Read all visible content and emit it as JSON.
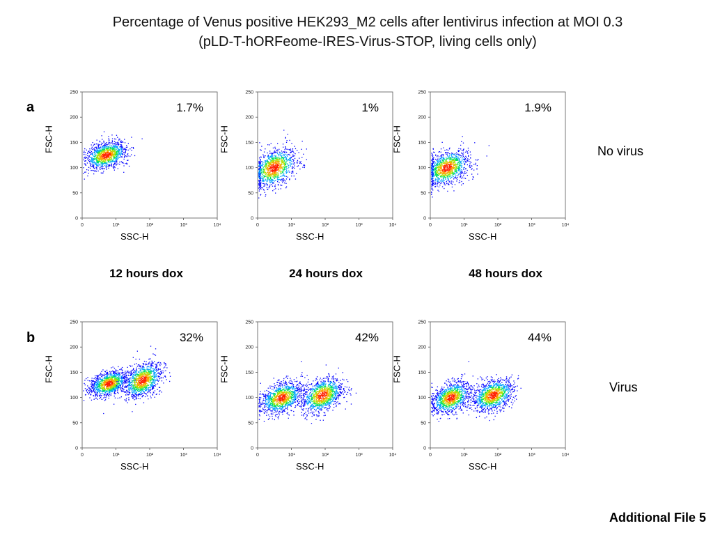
{
  "title": {
    "line1": "Percentage of Venus positive HEK293_M2 cells after lentivirus infection at MOI 0.3",
    "line2": "(pLD-T-hORFeome-IRES-Virus-STOP, living cells only)"
  },
  "rows": [
    {
      "label": "a",
      "side_label": "No virus"
    },
    {
      "label": "b",
      "side_label": "Virus"
    }
  ],
  "conditions": [
    "12 hours dox",
    "24 hours dox",
    "48 hours dox"
  ],
  "footer": "Additional File 5",
  "axis": {
    "xlabel": "SSC-H",
    "ylabel": "FSC-H",
    "x_ticks": [
      "0",
      "10¹",
      "10²",
      "10³",
      "10⁴"
    ],
    "y_ticks": [
      "0",
      "50",
      "100",
      "150",
      "200",
      "250"
    ],
    "ylim": [
      0,
      250
    ],
    "xscale": "log"
  },
  "density_colors": [
    "#0000ff",
    "#00a0ff",
    "#00e060",
    "#b0e000",
    "#ffa000",
    "#ff2000"
  ],
  "chart_data": [
    {
      "type": "scatter",
      "row": "a",
      "condition": "12 hours dox",
      "percent_positive": "1.7%",
      "clusters": [
        {
          "ssc_center": 5,
          "fsc_center": 125,
          "spread_log": 0.55,
          "spread_fsc": 14
        }
      ]
    },
    {
      "type": "scatter",
      "row": "a",
      "condition": "24 hours dox",
      "percent_positive": "1%",
      "clusters": [
        {
          "ssc_center": 3,
          "fsc_center": 100,
          "spread_log": 0.6,
          "spread_fsc": 20
        }
      ]
    },
    {
      "type": "scatter",
      "row": "a",
      "condition": "48 hours dox",
      "percent_positive": "1.9%",
      "clusters": [
        {
          "ssc_center": 3,
          "fsc_center": 100,
          "spread_log": 0.6,
          "spread_fsc": 18
        }
      ]
    },
    {
      "type": "scatter",
      "row": "b",
      "condition": "12 hours dox",
      "percent_positive": "32%",
      "clusters": [
        {
          "ssc_center": 6,
          "fsc_center": 128,
          "spread_log": 0.5,
          "spread_fsc": 13
        },
        {
          "ssc_center": 60,
          "fsc_center": 135,
          "spread_log": 0.5,
          "spread_fsc": 18
        }
      ]
    },
    {
      "type": "scatter",
      "row": "b",
      "condition": "24 hours dox",
      "percent_positive": "42%",
      "clusters": [
        {
          "ssc_center": 5,
          "fsc_center": 100,
          "spread_log": 0.55,
          "spread_fsc": 16
        },
        {
          "ssc_center": 80,
          "fsc_center": 105,
          "spread_log": 0.55,
          "spread_fsc": 18
        }
      ]
    },
    {
      "type": "scatter",
      "row": "b",
      "condition": "48 hours dox",
      "percent_positive": "44%",
      "clusters": [
        {
          "ssc_center": 4,
          "fsc_center": 100,
          "spread_log": 0.5,
          "spread_fsc": 16
        },
        {
          "ssc_center": 70,
          "fsc_center": 105,
          "spread_log": 0.55,
          "spread_fsc": 16
        }
      ]
    }
  ]
}
